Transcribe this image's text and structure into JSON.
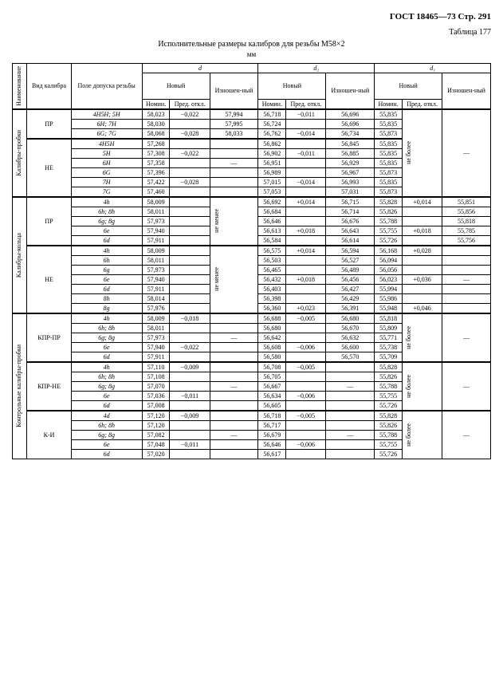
{
  "header": "ГОСТ 18465—73 Стр. 291",
  "table_label": "Таблица 177",
  "title": "Исполнительные размеры калибров для резьбы М58×2",
  "unit": "мм",
  "col_headers": {
    "naim": "Наименование",
    "vid": "Вид калибра",
    "pole": "Поле допуска резьбы",
    "d": "d",
    "d2": "d₂",
    "d1": "d₁",
    "novy": "Новый",
    "izn": "Изношен-ный",
    "nomin": "Номин.",
    "pred": "Пред. откл.",
    "ne_menee": "не менее",
    "ne_bolee": "не более"
  },
  "sections": {
    "s1": "Калибры-пробки",
    "s2": "Калибры-кольца",
    "s3": "Контрольные калибры-пробки"
  },
  "vid": {
    "pr": "ПР",
    "ne": "НЕ",
    "kpr_pr": "КПР-ПР",
    "kpr_ne": "КПР-НЕ",
    "ki": "К-И"
  },
  "rows": [
    {
      "pole": "4H5H; 5H",
      "d_n": "58,023",
      "d_p": "−0,022",
      "d_i": "57,994",
      "d2_n": "56,718",
      "d2_p": "−0,011",
      "d2_i": "56,696",
      "d1_n": "55,835"
    },
    {
      "pole": "6H; 7H",
      "d_n": "58,030",
      "d_p": "",
      "d_i": "57,995",
      "d2_n": "56,724",
      "d2_p": "",
      "d2_i": "56,696",
      "d1_n": "55,835"
    },
    {
      "pole": "6G; 7G",
      "d_n": "58,068",
      "d_p": "−0,028",
      "d_i": "58,033",
      "d2_n": "56,762",
      "d2_p": "−0,014",
      "d2_i": "56,734",
      "d1_n": "55,873"
    },
    {
      "pole": "4H5H",
      "d_n": "57,268",
      "d_p": "",
      "d_i": "",
      "d2_n": "56,862",
      "d2_p": "",
      "d2_i": "56,845",
      "d1_n": "55,835"
    },
    {
      "pole": "5H",
      "d_n": "57,308",
      "d_p": "−0,022",
      "d_i": "",
      "d2_n": "56,902",
      "d2_p": "−0,011",
      "d2_i": "56,885",
      "d1_n": "55,835"
    },
    {
      "pole": "6H",
      "d_n": "57,358",
      "d_p": "",
      "d_i": "—",
      "d2_n": "56,951",
      "d2_p": "",
      "d2_i": "56,929",
      "d1_n": "55,835"
    },
    {
      "pole": "6G",
      "d_n": "57,396",
      "d_p": "",
      "d_i": "",
      "d2_n": "56,989",
      "d2_p": "",
      "d2_i": "56,967",
      "d1_n": "55,873"
    },
    {
      "pole": "7H",
      "d_n": "57,422",
      "d_p": "−0,028",
      "d_i": "",
      "d2_n": "57,015",
      "d2_p": "−0,014",
      "d2_i": "56,993",
      "d1_n": "55,835"
    },
    {
      "pole": "7G",
      "d_n": "57,460",
      "d_p": "",
      "d_i": "",
      "d2_n": "57,053",
      "d2_p": "",
      "d2_i": "57,031",
      "d1_n": "55,873"
    },
    {
      "pole": "4h",
      "d_n": "58,009",
      "d_p": "",
      "d_i": "",
      "d2_n": "56,692",
      "d2_p": "+0,014",
      "d2_i": "56,715",
      "d1_n": "55,828",
      "d1_p": "+0,014",
      "d1_i": "55,851"
    },
    {
      "pole": "6h; 8h",
      "d_n": "58,011",
      "d_p": "",
      "d_i": "",
      "d2_n": "56,684",
      "d2_p": "",
      "d2_i": "56,714",
      "d1_n": "55,826",
      "d1_p": "",
      "d1_i": "55,856"
    },
    {
      "pole": "6g; 8g",
      "d_n": "57,973",
      "d_p": "",
      "d_i": "—",
      "d2_n": "56,646",
      "d2_p": "",
      "d2_i": "56,676",
      "d1_n": "55,788",
      "d1_p": "",
      "d1_i": "55,818"
    },
    {
      "pole": "6e",
      "d_n": "57,940",
      "d_p": "",
      "d_i": "",
      "d2_n": "56,613",
      "d2_p": "+0,018",
      "d2_i": "56,643",
      "d1_n": "55,755",
      "d1_p": "+0,018",
      "d1_i": "55,785"
    },
    {
      "pole": "6d",
      "d_n": "57,911",
      "d_p": "",
      "d_i": "",
      "d2_n": "56,584",
      "d2_p": "",
      "d2_i": "56,614",
      "d1_n": "55,726",
      "d1_p": "",
      "d1_i": "55,756"
    },
    {
      "pole": "4h",
      "d_n": "58,009",
      "d_p": "",
      "d_i": "",
      "d2_n": "56,575",
      "d2_p": "+0,014",
      "d2_i": "56,594",
      "d1_n": "56,168",
      "d1_p": "+0,028",
      "d1_i": ""
    },
    {
      "pole": "6h",
      "d_n": "58,011",
      "d_p": "",
      "d_i": "",
      "d2_n": "56,503",
      "d2_p": "",
      "d2_i": "56,527",
      "d1_n": "56,094",
      "d1_p": "",
      "d1_i": ""
    },
    {
      "pole": "6g",
      "d_n": "57,973",
      "d_p": "",
      "d_i": "",
      "d2_n": "56,465",
      "d2_p": "",
      "d2_i": "56,489",
      "d1_n": "56,056",
      "d1_p": "",
      "d1_i": ""
    },
    {
      "pole": "6e",
      "d_n": "57,940",
      "d_p": "",
      "d_i": "—",
      "d2_n": "56,432",
      "d2_p": "+0,018",
      "d2_i": "56,456",
      "d1_n": "56,023",
      "d1_p": "+0,036",
      "d1_i": "—"
    },
    {
      "pole": "6d",
      "d_n": "57,911",
      "d_p": "",
      "d_i": "",
      "d2_n": "56,403",
      "d2_p": "",
      "d2_i": "56,427",
      "d1_n": "55,994",
      "d1_p": "",
      "d1_i": ""
    },
    {
      "pole": "8h",
      "d_n": "58,014",
      "d_p": "",
      "d_i": "",
      "d2_n": "56,398",
      "d2_p": "",
      "d2_i": "56,429",
      "d1_n": "55,986",
      "d1_p": "",
      "d1_i": ""
    },
    {
      "pole": "8g",
      "d_n": "57,976",
      "d_p": "",
      "d_i": "",
      "d2_n": "56,360",
      "d2_p": "+0,023",
      "d2_i": "56,391",
      "d1_n": "55,948",
      "d1_p": "+0,046",
      "d1_i": ""
    },
    {
      "pole": "4h",
      "d_n": "58,009",
      "d_p": "−0,018",
      "d_i": "",
      "d2_n": "56,688",
      "d2_p": "−0,005",
      "d2_i": "56,680",
      "d1_n": "55,818"
    },
    {
      "pole": "6h; 8h",
      "d_n": "58,011",
      "d_p": "",
      "d_i": "",
      "d2_n": "56,680",
      "d2_p": "",
      "d2_i": "56,670",
      "d1_n": "55,809"
    },
    {
      "pole": "6g; 8g",
      "d_n": "57,973",
      "d_p": "",
      "d_i": "—",
      "d2_n": "56,642",
      "d2_p": "",
      "d2_i": "56,632",
      "d1_n": "55,771"
    },
    {
      "pole": "6e",
      "d_n": "57,940",
      "d_p": "−0,022",
      "d_i": "",
      "d2_n": "56,608",
      "d2_p": "−0,006",
      "d2_i": "56,600",
      "d1_n": "55,738"
    },
    {
      "pole": "6d",
      "d_n": "57,911",
      "d_p": "",
      "d_i": "",
      "d2_n": "56,580",
      "d2_p": "",
      "d2_i": "56,570",
      "d1_n": "55,709"
    },
    {
      "pole": "4h",
      "d_n": "57,110",
      "d_p": "−0,009",
      "d_i": "",
      "d2_n": "56,708",
      "d2_p": "−0,005",
      "d2_i": "",
      "d1_n": "55,828"
    },
    {
      "pole": "6h; 8h",
      "d_n": "57,108",
      "d_p": "",
      "d_i": "",
      "d2_n": "56,705",
      "d2_p": "",
      "d2_i": "",
      "d1_n": "55,826"
    },
    {
      "pole": "6g; 8g",
      "d_n": "57,070",
      "d_p": "",
      "d_i": "—",
      "d2_n": "56,667",
      "d2_p": "",
      "d2_i": "—",
      "d1_n": "55,788"
    },
    {
      "pole": "6e",
      "d_n": "57,036",
      "d_p": "−0,011",
      "d_i": "",
      "d2_n": "56,634",
      "d2_p": "−0,006",
      "d2_i": "",
      "d1_n": "55,755"
    },
    {
      "pole": "6d",
      "d_n": "57,008",
      "d_p": "",
      "d_i": "",
      "d2_n": "56,605",
      "d2_p": "",
      "d2_i": "",
      "d1_n": "55,726"
    },
    {
      "pole": "4d",
      "d_n": "57,120",
      "d_p": "−0,009",
      "d_i": "",
      "d2_n": "56,718",
      "d2_p": "−0,005",
      "d2_i": "",
      "d1_n": "55,828"
    },
    {
      "pole": "6h; 8h",
      "d_n": "57,120",
      "d_p": "",
      "d_i": "",
      "d2_n": "56,717",
      "d2_p": "",
      "d2_i": "",
      "d1_n": "55,826"
    },
    {
      "pole": "6g; 8g",
      "d_n": "57,082",
      "d_p": "",
      "d_i": "—",
      "d2_n": "56,679",
      "d2_p": "",
      "d2_i": "—",
      "d1_n": "55,788"
    },
    {
      "pole": "6e",
      "d_n": "57,048",
      "d_p": "−0,011",
      "d_i": "",
      "d2_n": "56,646",
      "d2_p": "−0,006",
      "d2_i": "",
      "d1_n": "55,755"
    },
    {
      "pole": "6d",
      "d_n": "57,020",
      "d_p": "",
      "d_i": "",
      "d2_n": "56,617",
      "d2_p": "",
      "d2_i": "",
      "d1_n": "55,726"
    }
  ]
}
